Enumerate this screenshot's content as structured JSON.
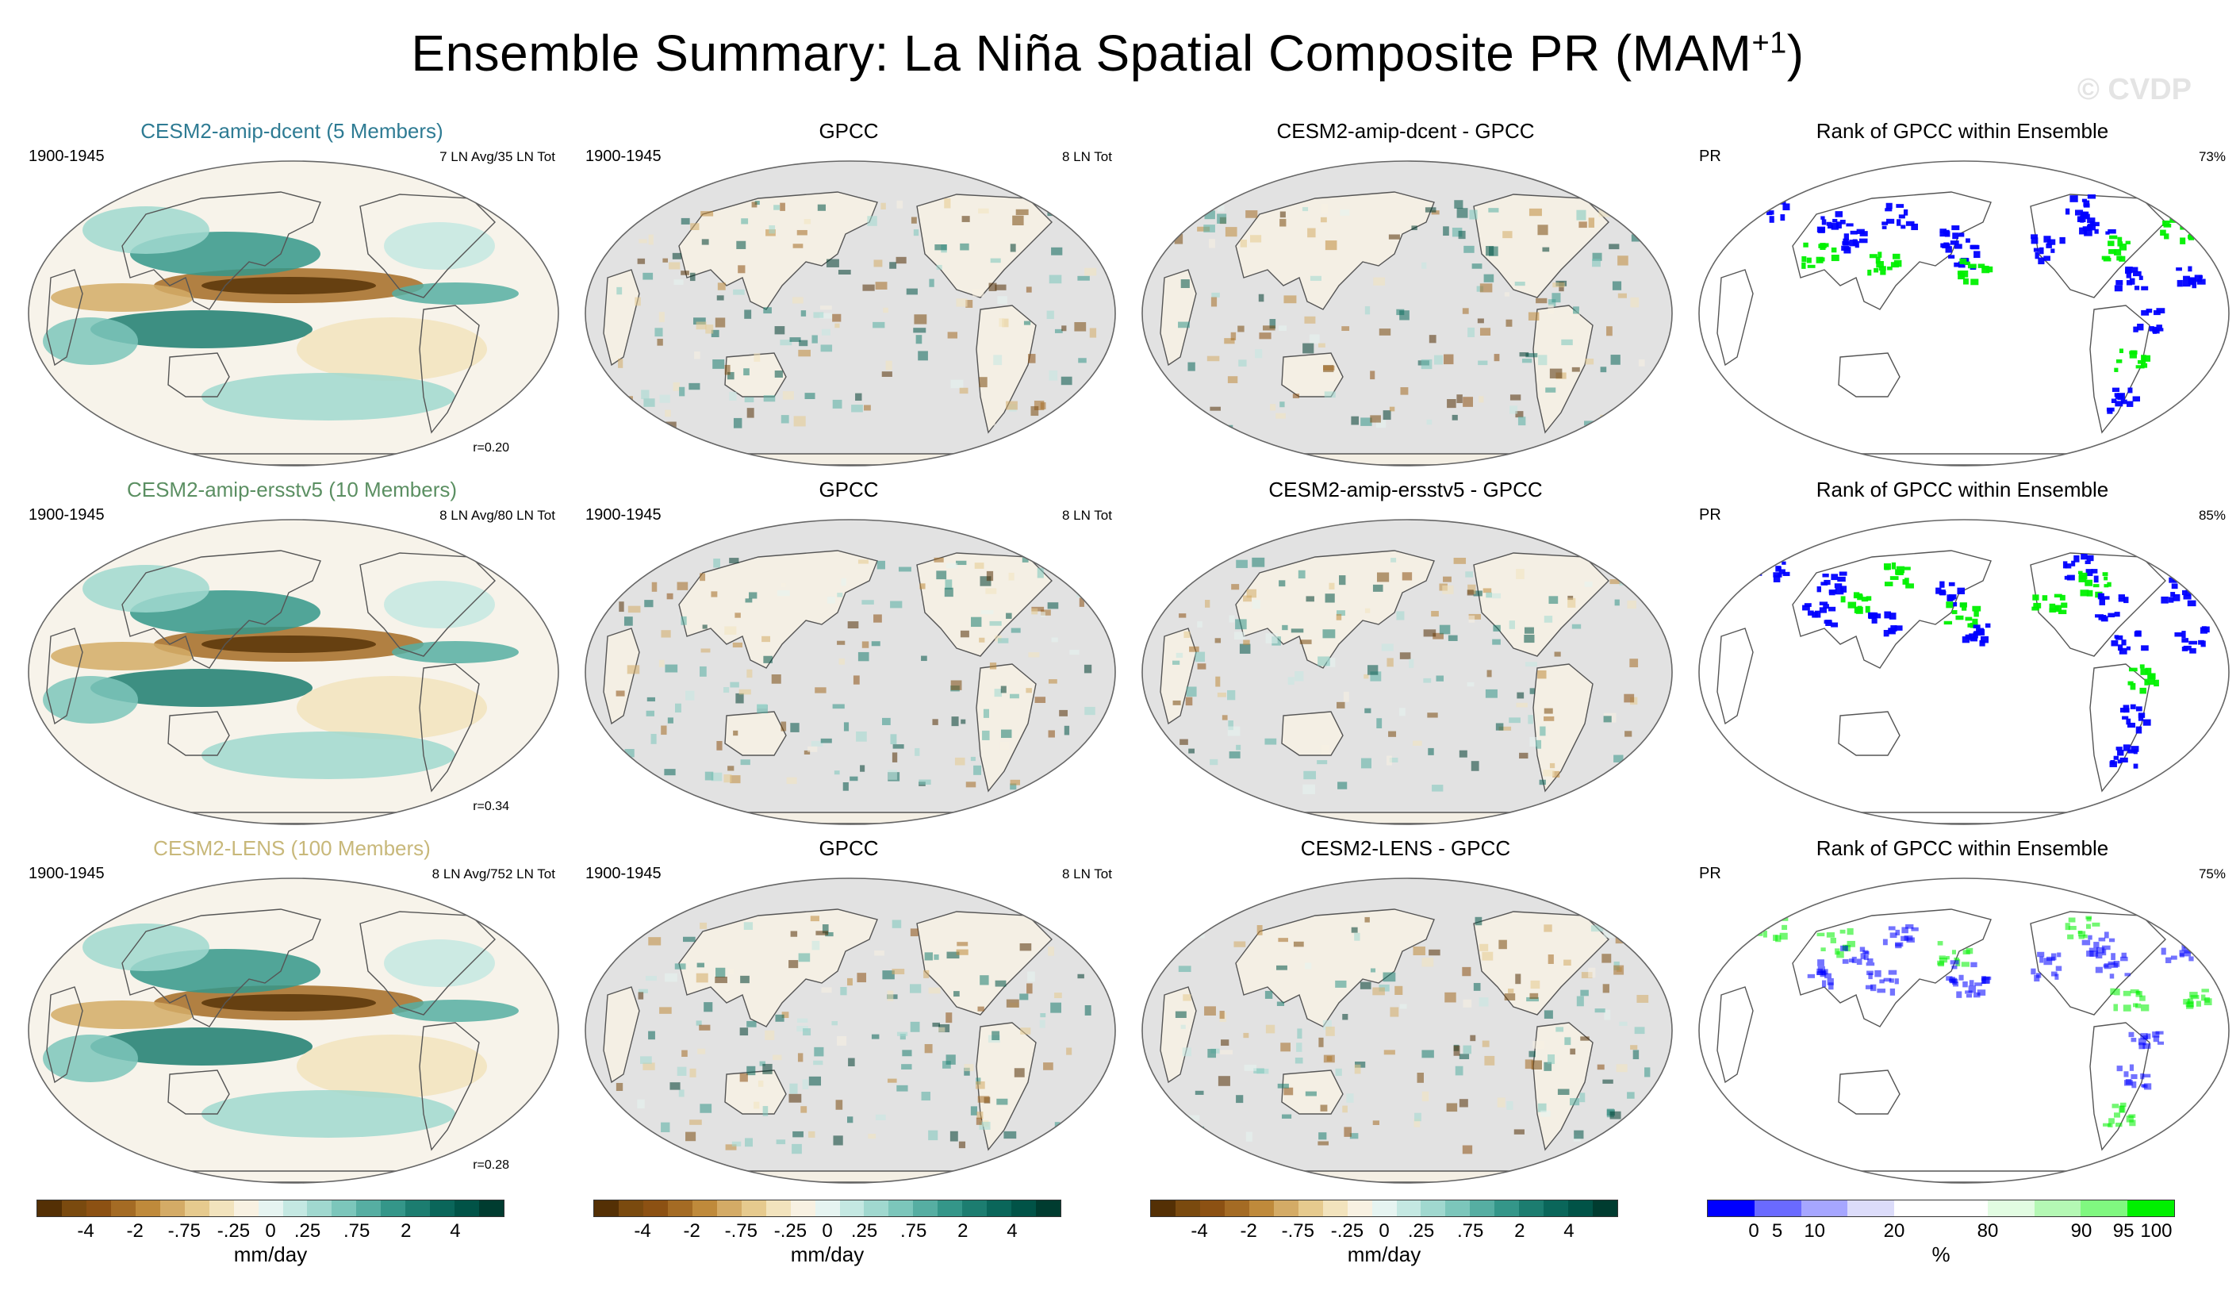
{
  "title": {
    "text": "Ensemble Summary: La Niña Spatial Composite PR (MAM",
    "sup": "+1",
    "close": ")"
  },
  "watermark": "© CVDP",
  "colors": {
    "ocean_missing": "#e2e2e2",
    "land_line": "#555555",
    "brown_dark": "#543005",
    "teal_dark": "#003c30",
    "rank_low": "#0000ff",
    "rank_high": "#00ff00"
  },
  "rows": [
    {
      "model": {
        "title": "CESM2-amip-dcent (5 Members)",
        "title_color": "#2e7b93",
        "period": "1900-1945",
        "count": "7 LN Avg/35 LN Tot",
        "r": "r=0.20"
      },
      "obs": {
        "title": "GPCC",
        "period": "1900-1945",
        "count": "8 LN Tot"
      },
      "diff": {
        "title": "CESM2-amip-dcent - GPCC"
      },
      "rank": {
        "title": "Rank of GPCC within Ensemble",
        "var": "PR",
        "pct": "73%"
      }
    },
    {
      "model": {
        "title": "CESM2-amip-ersstv5 (10 Members)",
        "title_color": "#5b8f62",
        "period": "1900-1945",
        "count": "8 LN Avg/80 LN Tot",
        "r": "r=0.34"
      },
      "obs": {
        "title": "GPCC",
        "period": "1900-1945",
        "count": "8 LN Tot"
      },
      "diff": {
        "title": "CESM2-amip-ersstv5 - GPCC"
      },
      "rank": {
        "title": "Rank of GPCC within Ensemble",
        "var": "PR",
        "pct": "85%"
      }
    },
    {
      "model": {
        "title": "CESM2-LENS (100 Members)",
        "title_color": "#c8b87a",
        "period": "1900-1945",
        "count": "8 LN Avg/752 LN Tot",
        "r": "r=0.28"
      },
      "obs": {
        "title": "GPCC",
        "period": "1900-1945",
        "count": "8 LN Tot"
      },
      "diff": {
        "title": "CESM2-LENS - GPCC"
      },
      "rank": {
        "title": "Rank of GPCC within Ensemble",
        "var": "PR",
        "pct": "75%"
      }
    }
  ],
  "chart_data": {
    "type": "heatmap",
    "description_label": "Ensemble Summary: La Niña Spatial Composite PR (MAM+1)",
    "colorbars": [
      {
        "id": "prbar",
        "unit": "mm/day",
        "colors": [
          "#543005",
          "#7a4a0f",
          "#8c5113",
          "#a46b24",
          "#bf8a3b",
          "#d4ab66",
          "#e6ca8e",
          "#f2e3bd",
          "#f8f1e2",
          "#e6f4f1",
          "#c4e8e2",
          "#a0d8cf",
          "#7cc6bb",
          "#56aea2",
          "#349689",
          "#1c7d70",
          "#0a665a",
          "#015347",
          "#003c30"
        ],
        "ticks": [
          {
            "label": "-4",
            "pos": 2
          },
          {
            "label": "-2",
            "pos": 4
          },
          {
            "label": "-.75",
            "pos": 6
          },
          {
            "label": "-.25",
            "pos": 8
          },
          {
            "label": "0",
            "pos": 9.5
          },
          {
            "label": ".25",
            "pos": 11
          },
          {
            "label": ".75",
            "pos": 13
          },
          {
            "label": "2",
            "pos": 15
          },
          {
            "label": "4",
            "pos": 17
          }
        ]
      },
      {
        "id": "rankbar",
        "unit": "%",
        "colors": [
          "#0000ff",
          "#6a6aff",
          "#a6a6ff",
          "#dcdcfa",
          "#ffffff",
          "#ffffff",
          "#e2fce2",
          "#b4f8b4",
          "#80f880",
          "#00f000"
        ],
        "ticks": [
          {
            "label": "0",
            "pos": 1
          },
          {
            "label": "5",
            "pos": 1.5
          },
          {
            "label": "10",
            "pos": 2.3
          },
          {
            "label": "20",
            "pos": 4
          },
          {
            "label": "80",
            "pos": 6
          },
          {
            "label": "90",
            "pos": 8
          },
          {
            "label": "95",
            "pos": 8.9
          },
          {
            "label": "100",
            "pos": 9.6
          }
        ]
      }
    ]
  }
}
